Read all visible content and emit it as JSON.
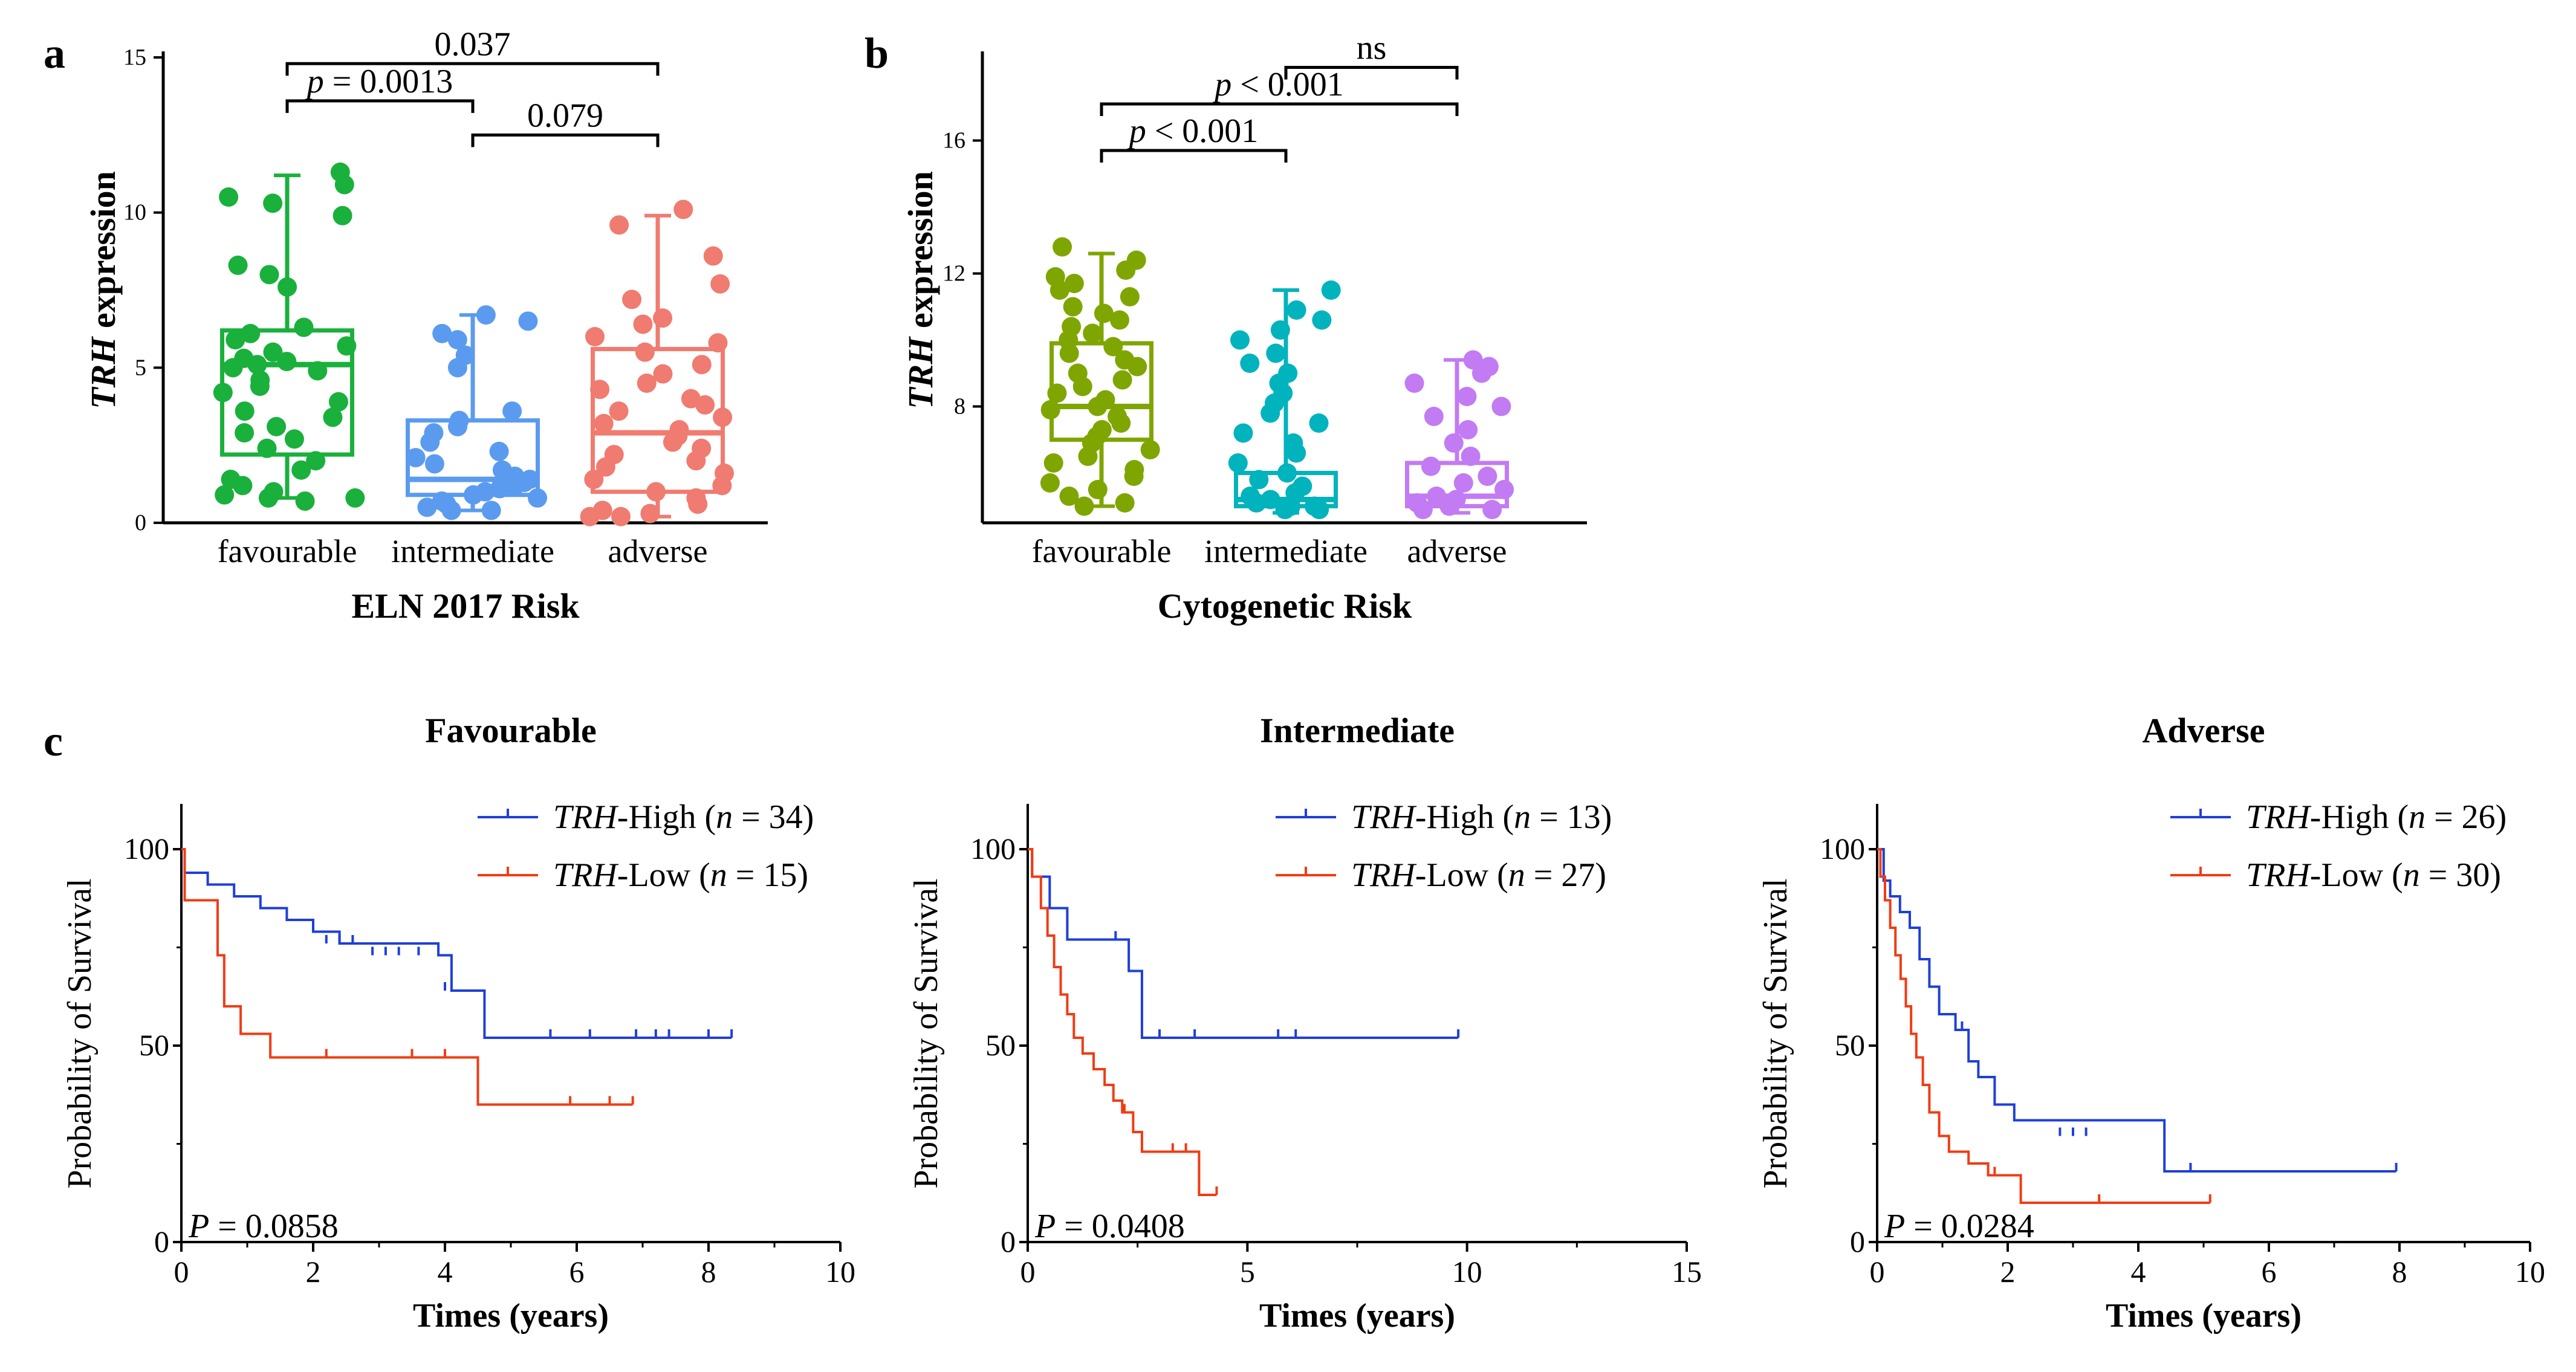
{
  "chart_data": [
    {
      "panel": "a",
      "type": "box",
      "title": "",
      "xlabel": "ELN 2017 Risk",
      "ylabel_italic": "TRH",
      "ylabel_rest": " expression",
      "ylim": [
        0,
        15
      ],
      "yticks": [
        0,
        5,
        10,
        15
      ],
      "categories": [
        "favourable",
        "intermediate",
        "adverse"
      ],
      "colors": [
        "#1ab03c",
        "#5b9bef",
        "#f07b70"
      ],
      "boxes": [
        {
          "q1": 2.2,
          "median": 5.1,
          "q3": 6.2,
          "min": 0.8,
          "max": 11.2
        },
        {
          "q1": 0.9,
          "median": 1.4,
          "q3": 3.3,
          "min": 0.4,
          "max": 6.7
        },
        {
          "q1": 1.0,
          "median": 2.9,
          "q3": 5.6,
          "min": 0.2,
          "max": 9.9
        }
      ],
      "points": [
        [
          11.3,
          10.9,
          10.5,
          10.3,
          9.9,
          8.3,
          8.0,
          7.6,
          6.3,
          6.1,
          5.9,
          5.7,
          5.5,
          5.3,
          5.2,
          5.1,
          5.0,
          4.9,
          4.6,
          4.4,
          4.2,
          3.9,
          3.6,
          3.4,
          3.1,
          2.9,
          2.7,
          2.4,
          2.0,
          1.7,
          1.4,
          1.2,
          1.0,
          0.9,
          0.8,
          0.8,
          0.7
        ],
        [
          6.7,
          6.5,
          6.1,
          5.9,
          5.4,
          5.0,
          3.6,
          3.3,
          3.1,
          2.9,
          2.6,
          2.3,
          2.1,
          1.9,
          1.7,
          1.5,
          1.4,
          1.3,
          1.2,
          1.1,
          1.0,
          0.9,
          0.8,
          0.7,
          0.6,
          0.5,
          0.4,
          0.4
        ],
        [
          10.1,
          9.6,
          8.6,
          7.7,
          7.2,
          6.6,
          6.4,
          6.0,
          5.8,
          5.5,
          5.1,
          4.8,
          4.5,
          4.3,
          4.0,
          3.8,
          3.6,
          3.4,
          3.2,
          3.0,
          2.8,
          2.6,
          2.4,
          2.2,
          2.0,
          1.8,
          1.6,
          1.4,
          1.2,
          1.0,
          0.8,
          0.6,
          0.4,
          0.3,
          0.2,
          0.2
        ]
      ],
      "brackets": [
        {
          "from": 0,
          "to": 1,
          "y": 13.6,
          "italic_prefix": "p",
          "label": " = 0.0013"
        },
        {
          "from": 1,
          "to": 2,
          "y": 12.5,
          "italic_prefix": "",
          "label": "0.079"
        },
        {
          "from": 0,
          "to": 2,
          "y": 14.8,
          "italic_prefix": "",
          "label": "0.037"
        }
      ]
    },
    {
      "panel": "b",
      "type": "box",
      "title": "",
      "xlabel": "Cytogenetic Risk",
      "ylabel_italic": "TRH",
      "ylabel_rest": " expression",
      "ylim": [
        4.5,
        18.5
      ],
      "yticks": [
        8,
        12,
        16
      ],
      "categories": [
        "favourable",
        "intermediate",
        "adverse"
      ],
      "colors": [
        "#7fa600",
        "#00b3bd",
        "#c27bf2"
      ],
      "boxes": [
        {
          "q1": 7.0,
          "median": 8.0,
          "q3": 9.9,
          "min": 5.0,
          "max": 12.6
        },
        {
          "q1": 5.0,
          "median": 5.2,
          "q3": 6.0,
          "min": 4.8,
          "max": 11.5
        },
        {
          "q1": 5.0,
          "median": 5.3,
          "q3": 6.3,
          "min": 4.8,
          "max": 9.4
        }
      ],
      "points": [
        [
          12.8,
          12.4,
          12.1,
          11.9,
          11.7,
          11.5,
          11.3,
          11.0,
          10.8,
          10.6,
          10.4,
          10.2,
          10.0,
          9.8,
          9.6,
          9.4,
          9.2,
          9.0,
          8.8,
          8.6,
          8.4,
          8.2,
          8.0,
          7.9,
          7.7,
          7.5,
          7.3,
          7.1,
          6.9,
          6.7,
          6.5,
          6.3,
          6.1,
          5.9,
          5.7,
          5.5,
          5.3,
          5.1,
          5.0
        ],
        [
          11.5,
          10.9,
          10.6,
          10.3,
          10.0,
          9.6,
          9.3,
          9.0,
          8.7,
          8.4,
          8.1,
          7.8,
          7.5,
          7.2,
          6.9,
          6.6,
          6.3,
          6.0,
          5.8,
          5.6,
          5.4,
          5.3,
          5.2,
          5.1,
          5.0,
          5.0,
          4.9,
          4.9
        ],
        [
          9.4,
          9.2,
          9.0,
          8.7,
          8.3,
          8.0,
          7.7,
          7.3,
          6.9,
          6.5,
          6.2,
          5.9,
          5.7,
          5.5,
          5.3,
          5.2,
          5.1,
          5.0,
          4.9,
          4.9
        ]
      ],
      "brackets": [
        {
          "from": 0,
          "to": 1,
          "y": 15.7,
          "italic_prefix": "p",
          "label": " < 0.001"
        },
        {
          "from": 0,
          "to": 2,
          "y": 17.1,
          "italic_prefix": "p",
          "label": " < 0.001"
        },
        {
          "from": 1,
          "to": 2,
          "y": 18.2,
          "italic_prefix": "",
          "label": "ns"
        }
      ]
    },
    {
      "panel": "c",
      "type": "km",
      "title": "Favourable",
      "xlabel": "Times (years)",
      "ylabel": "Probability of Survival",
      "xlim": [
        0,
        10
      ],
      "xticks": [
        0,
        2,
        4,
        6,
        8,
        10
      ],
      "ylim": [
        0,
        100
      ],
      "yticks": [
        0,
        50,
        100
      ],
      "p_italic": "P",
      "p_text": " = 0.0858",
      "series": [
        {
          "name_italic": "TRH",
          "name_rest": "-High (",
          "n_italic": "n",
          "n_rest": " = 34)",
          "color": "#1f3fd8",
          "times": [
            0,
            0.05,
            0.4,
            0.8,
            1.2,
            1.6,
            2.0,
            2.4,
            3.9,
            4.1,
            4.6,
            8.35
          ],
          "surv": [
            100,
            94,
            91,
            88,
            85,
            82,
            79,
            76,
            73,
            64,
            52,
            52
          ],
          "censor": [
            [
              2.2,
              76
            ],
            [
              2.4,
              76
            ],
            [
              2.6,
              76
            ],
            [
              2.9,
              73
            ],
            [
              3.1,
              73
            ],
            [
              3.3,
              73
            ],
            [
              3.6,
              73
            ],
            [
              4.0,
              64
            ],
            [
              5.6,
              52
            ],
            [
              6.2,
              52
            ],
            [
              6.9,
              52
            ],
            [
              7.2,
              52
            ],
            [
              7.4,
              52
            ],
            [
              8.0,
              52
            ],
            [
              8.35,
              52
            ]
          ]
        },
        {
          "name_italic": "TRH",
          "name_rest": "-Low (",
          "n_italic": "n",
          "n_rest": " = 15)",
          "color": "#f03c14",
          "times": [
            0,
            0.05,
            0.55,
            0.65,
            0.9,
            1.35,
            4.5,
            6.85
          ],
          "surv": [
            100,
            87,
            73,
            60,
            53,
            47,
            35,
            35
          ],
          "censor": [
            [
              2.2,
              47
            ],
            [
              3.5,
              47
            ],
            [
              4.0,
              47
            ],
            [
              5.9,
              35
            ],
            [
              6.5,
              35
            ],
            [
              6.85,
              35
            ]
          ]
        }
      ]
    },
    {
      "panel": "c",
      "type": "km",
      "title": "Intermediate",
      "xlabel": "Times (years)",
      "ylabel": "Probability of Survival",
      "xlim": [
        0,
        15
      ],
      "xticks": [
        0,
        5,
        10,
        15
      ],
      "ylim": [
        0,
        100
      ],
      "yticks": [
        0,
        50,
        100
      ],
      "p_italic": "P",
      "p_text": " = 0.0408",
      "series": [
        {
          "name_italic": "TRH",
          "name_rest": "-High (",
          "n_italic": "n",
          "n_rest": " = 13)",
          "color": "#1f3fd8",
          "times": [
            0,
            0.1,
            0.5,
            0.9,
            2.3,
            2.6,
            9.8
          ],
          "surv": [
            100,
            93,
            85,
            77,
            69,
            52,
            52
          ],
          "censor": [
            [
              2.0,
              77
            ],
            [
              3.0,
              52
            ],
            [
              3.8,
              52
            ],
            [
              5.7,
              52
            ],
            [
              6.1,
              52
            ],
            [
              9.8,
              52
            ]
          ]
        },
        {
          "name_italic": "TRH",
          "name_rest": "-Low (",
          "n_italic": "n",
          "n_rest": " = 27)",
          "color": "#f03c14",
          "times": [
            0,
            0.1,
            0.3,
            0.45,
            0.6,
            0.75,
            0.9,
            1.05,
            1.25,
            1.5,
            1.75,
            1.95,
            2.15,
            2.4,
            2.6,
            3.9,
            4.3
          ],
          "surv": [
            100,
            93,
            85,
            78,
            70,
            63,
            58,
            52,
            48,
            44,
            40,
            36,
            33,
            28,
            23,
            12,
            12
          ],
          "censor": [
            [
              2.2,
              33
            ],
            [
              3.3,
              23
            ],
            [
              3.6,
              23
            ],
            [
              4.3,
              12
            ]
          ]
        }
      ]
    },
    {
      "panel": "c",
      "type": "km",
      "title": "Adverse",
      "xlabel": "Times (years)",
      "ylabel": "Probability of Survival",
      "xlim": [
        0,
        10
      ],
      "xticks": [
        0,
        2,
        4,
        6,
        8,
        10
      ],
      "ylim": [
        0,
        100
      ],
      "yticks": [
        0,
        50,
        100
      ],
      "p_italic": "P",
      "p_text": " = 0.0284",
      "series": [
        {
          "name_italic": "TRH",
          "name_rest": "-High (",
          "n_italic": "n",
          "n_rest": " = 26)",
          "color": "#1f3fd8",
          "times": [
            0,
            0.1,
            0.2,
            0.35,
            0.5,
            0.65,
            0.8,
            0.95,
            1.2,
            1.4,
            1.55,
            1.8,
            2.1,
            4.4,
            7.95
          ],
          "surv": [
            100,
            92,
            88,
            84,
            80,
            72,
            65,
            58,
            54,
            46,
            42,
            35,
            31,
            18,
            18
          ],
          "censor": [
            [
              1.3,
              54
            ],
            [
              2.8,
              27
            ],
            [
              3.0,
              27
            ],
            [
              3.2,
              27
            ],
            [
              4.8,
              18
            ],
            [
              7.95,
              18
            ]
          ]
        },
        {
          "name_italic": "TRH",
          "name_rest": "-Low (",
          "n_italic": "n",
          "n_rest": " = 30)",
          "color": "#f03c14",
          "times": [
            0,
            0.05,
            0.12,
            0.2,
            0.28,
            0.36,
            0.44,
            0.52,
            0.6,
            0.7,
            0.8,
            0.95,
            1.1,
            1.4,
            1.7,
            2.2,
            5.1
          ],
          "surv": [
            100,
            93,
            87,
            80,
            73,
            67,
            60,
            53,
            47,
            40,
            33,
            27,
            23,
            20,
            17,
            10,
            10
          ],
          "censor": [
            [
              1.8,
              17
            ],
            [
              3.4,
              10
            ],
            [
              5.1,
              10
            ]
          ]
        }
      ]
    }
  ]
}
